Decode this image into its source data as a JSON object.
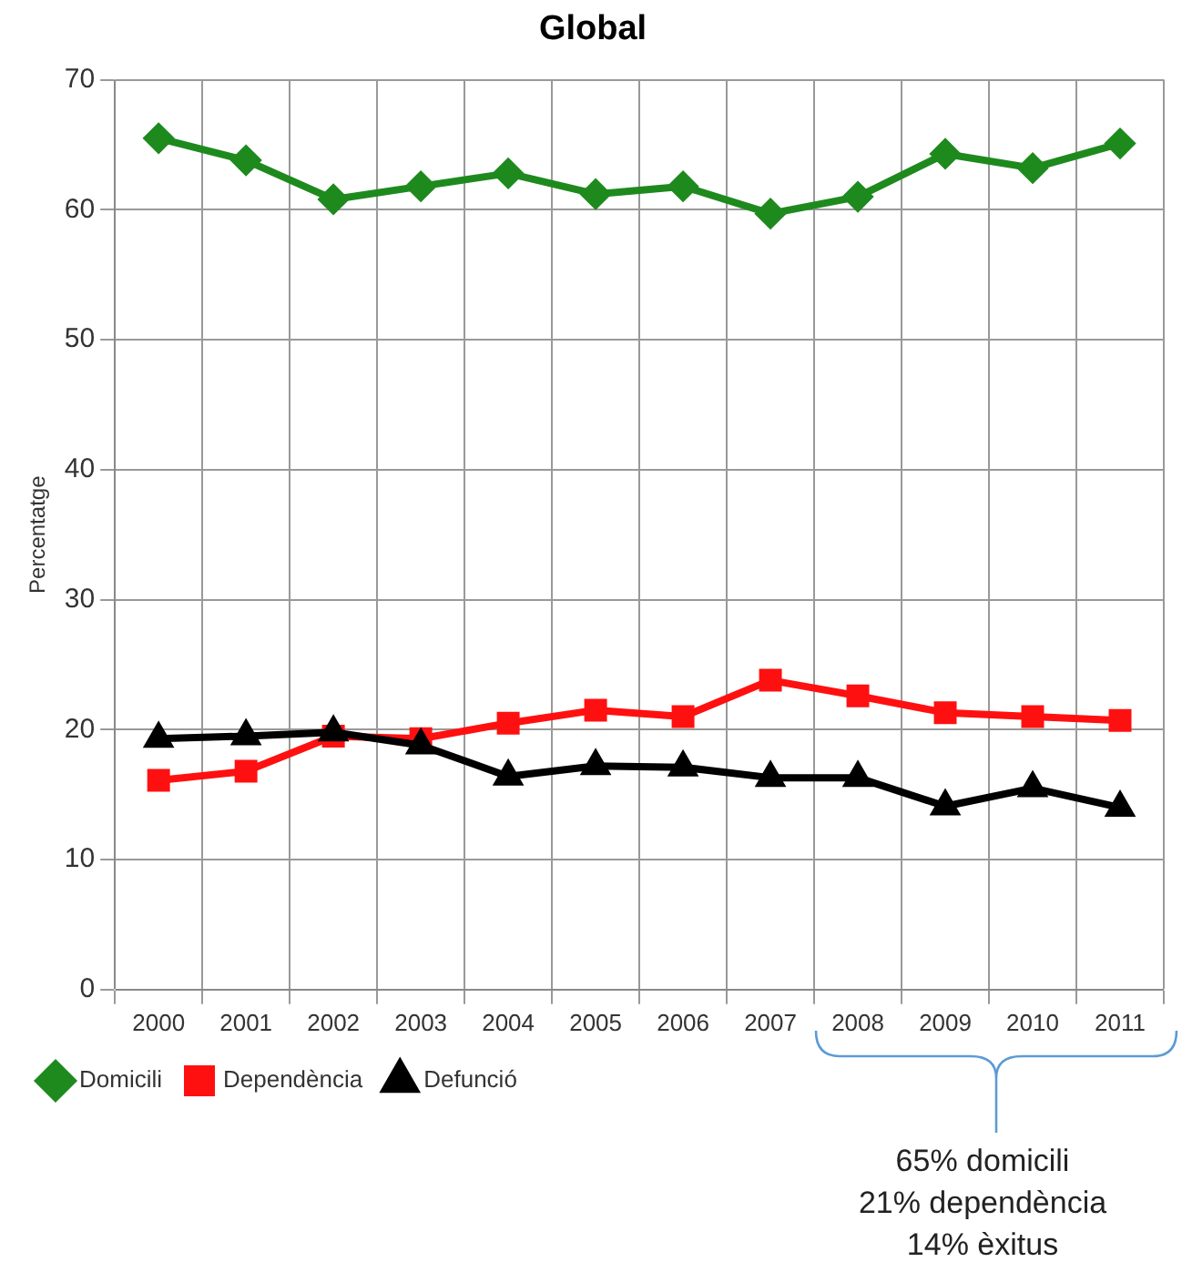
{
  "chart_data": {
    "type": "line",
    "title": "Global",
    "ylabel": "Percentatge",
    "categories": [
      "2000",
      "2001",
      "2002",
      "2003",
      "2004",
      "2005",
      "2006",
      "2007",
      "2008",
      "2009",
      "2010",
      "2011"
    ],
    "series": [
      {
        "name": "Domicili",
        "color": "#1e8a1e",
        "marker": "diamond",
        "values": [
          65.5,
          63.8,
          60.8,
          61.8,
          62.8,
          61.2,
          61.8,
          59.7,
          61.0,
          64.3,
          63.2,
          65.1
        ]
      },
      {
        "name": "Dependència",
        "color": "#ff1010",
        "marker": "square",
        "values": [
          16.1,
          16.8,
          19.5,
          19.3,
          20.5,
          21.5,
          21.0,
          23.8,
          22.6,
          21.3,
          21.0,
          20.7
        ]
      },
      {
        "name": "Defunció",
        "color": "#000000",
        "marker": "triangle",
        "values": [
          19.3,
          19.5,
          19.8,
          18.8,
          16.4,
          17.2,
          17.1,
          16.3,
          16.3,
          14.1,
          15.5,
          14.0
        ]
      }
    ],
    "ylim": [
      0,
      70
    ],
    "yticks": [
      0,
      10,
      20,
      30,
      40,
      50,
      60,
      70
    ],
    "grid": true,
    "legend": "bottom left",
    "annotations": [
      "65% domicili\n21% dependència\n14% èxitus"
    ]
  }
}
